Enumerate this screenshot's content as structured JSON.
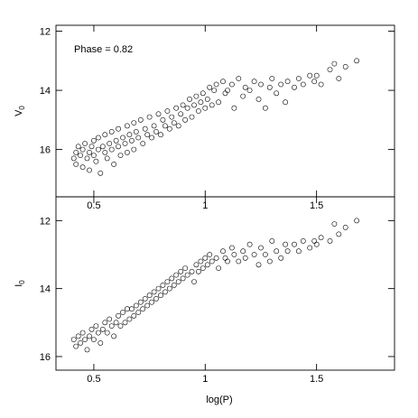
{
  "chart_data": {
    "type": "scatter",
    "shared_x": {
      "label": "log(P)",
      "lim": [
        0.33,
        1.85
      ],
      "ticks": [
        0.5,
        1,
        1.5
      ],
      "tick_labels": [
        "0.5",
        "1",
        "1.5"
      ]
    },
    "panels": [
      {
        "name": "top",
        "ylabel": "V",
        "ylabel_sub": "0",
        "annotation": "Phase = 0.82",
        "ylim": [
          11.8,
          17.6
        ],
        "y_inverted": true,
        "yticks": [
          12,
          14,
          16
        ],
        "ytick_labels": [
          "12",
          "14",
          "16"
        ],
        "series": [
          {
            "marker": "open-circle",
            "color": "#000000",
            "points": [
              [
                0.41,
                16.3
              ],
              [
                0.42,
                16.1
              ],
              [
                0.42,
                16.5
              ],
              [
                0.43,
                15.9
              ],
              [
                0.44,
                16.2
              ],
              [
                0.45,
                16.6
              ],
              [
                0.45,
                16.0
              ],
              [
                0.46,
                15.8
              ],
              [
                0.47,
                16.3
              ],
              [
                0.48,
                16.1
              ],
              [
                0.48,
                16.7
              ],
              [
                0.49,
                15.9
              ],
              [
                0.5,
                16.2
              ],
              [
                0.5,
                15.7
              ],
              [
                0.51,
                16.4
              ],
              [
                0.52,
                16.0
              ],
              [
                0.52,
                15.6
              ],
              [
                0.53,
                16.8
              ],
              [
                0.54,
                15.9
              ],
              [
                0.55,
                16.1
              ],
              [
                0.55,
                15.5
              ],
              [
                0.56,
                16.3
              ],
              [
                0.57,
                15.8
              ],
              [
                0.58,
                16.0
              ],
              [
                0.58,
                15.4
              ],
              [
                0.59,
                16.5
              ],
              [
                0.6,
                15.7
              ],
              [
                0.61,
                15.9
              ],
              [
                0.61,
                15.3
              ],
              [
                0.62,
                16.2
              ],
              [
                0.63,
                15.6
              ],
              [
                0.64,
                15.8
              ],
              [
                0.65,
                15.2
              ],
              [
                0.65,
                16.1
              ],
              [
                0.66,
                15.5
              ],
              [
                0.67,
                15.7
              ],
              [
                0.68,
                15.1
              ],
              [
                0.68,
                16.0
              ],
              [
                0.69,
                15.4
              ],
              [
                0.7,
                15.6
              ],
              [
                0.71,
                15.0
              ],
              [
                0.72,
                15.8
              ],
              [
                0.73,
                15.3
              ],
              [
                0.74,
                15.5
              ],
              [
                0.75,
                14.9
              ],
              [
                0.76,
                15.6
              ],
              [
                0.77,
                15.2
              ],
              [
                0.78,
                15.4
              ],
              [
                0.79,
                14.8
              ],
              [
                0.8,
                15.5
              ],
              [
                0.81,
                15.0
              ],
              [
                0.82,
                15.2
              ],
              [
                0.83,
                14.7
              ],
              [
                0.84,
                15.3
              ],
              [
                0.85,
                14.9
              ],
              [
                0.86,
                15.1
              ],
              [
                0.87,
                14.6
              ],
              [
                0.88,
                15.2
              ],
              [
                0.89,
                14.8
              ],
              [
                0.9,
                14.5
              ],
              [
                0.91,
                15.0
              ],
              [
                0.92,
                14.6
              ],
              [
                0.93,
                14.3
              ],
              [
                0.94,
                14.9
              ],
              [
                0.95,
                14.5
              ],
              [
                0.96,
                14.2
              ],
              [
                0.97,
                14.7
              ],
              [
                0.98,
                14.4
              ],
              [
                0.99,
                14.1
              ],
              [
                1.0,
                14.6
              ],
              [
                1.01,
                14.3
              ],
              [
                1.02,
                13.9
              ],
              [
                1.03,
                14.5
              ],
              [
                1.04,
                14.0
              ],
              [
                1.05,
                13.8
              ],
              [
                1.06,
                14.4
              ],
              [
                1.08,
                13.7
              ],
              [
                1.09,
                14.1
              ],
              [
                1.1,
                14.0
              ],
              [
                1.12,
                13.8
              ],
              [
                1.13,
                14.6
              ],
              [
                1.15,
                13.6
              ],
              [
                1.17,
                14.2
              ],
              [
                1.18,
                13.9
              ],
              [
                1.2,
                14.0
              ],
              [
                1.22,
                13.7
              ],
              [
                1.24,
                14.3
              ],
              [
                1.25,
                13.8
              ],
              [
                1.27,
                14.6
              ],
              [
                1.29,
                13.9
              ],
              [
                1.3,
                13.6
              ],
              [
                1.32,
                14.1
              ],
              [
                1.34,
                13.8
              ],
              [
                1.36,
                14.4
              ],
              [
                1.37,
                13.7
              ],
              [
                1.4,
                13.9
              ],
              [
                1.42,
                13.6
              ],
              [
                1.44,
                13.8
              ],
              [
                1.47,
                13.5
              ],
              [
                1.49,
                13.7
              ],
              [
                1.5,
                13.5
              ],
              [
                1.52,
                13.8
              ],
              [
                1.56,
                13.3
              ],
              [
                1.58,
                13.1
              ],
              [
                1.6,
                13.6
              ],
              [
                1.63,
                13.2
              ],
              [
                1.68,
                13.0
              ]
            ]
          }
        ]
      },
      {
        "name": "bottom",
        "ylabel": "I",
        "ylabel_sub": "0",
        "annotation": "",
        "ylim": [
          11.3,
          16.4
        ],
        "y_inverted": true,
        "yticks": [
          12,
          14,
          16
        ],
        "ytick_labels": [
          "12",
          "14",
          "16"
        ],
        "series": [
          {
            "marker": "open-circle",
            "color": "#000000",
            "points": [
              [
                0.41,
                15.5
              ],
              [
                0.42,
                15.7
              ],
              [
                0.43,
                15.4
              ],
              [
                0.44,
                15.6
              ],
              [
                0.45,
                15.3
              ],
              [
                0.46,
                15.5
              ],
              [
                0.47,
                15.8
              ],
              [
                0.48,
                15.4
              ],
              [
                0.49,
                15.2
              ],
              [
                0.5,
                15.5
              ],
              [
                0.51,
                15.1
              ],
              [
                0.52,
                15.3
              ],
              [
                0.53,
                15.6
              ],
              [
                0.54,
                15.2
              ],
              [
                0.55,
                15.0
              ],
              [
                0.56,
                15.3
              ],
              [
                0.57,
                14.9
              ],
              [
                0.58,
                15.1
              ],
              [
                0.59,
                15.4
              ],
              [
                0.6,
                15.0
              ],
              [
                0.61,
                14.8
              ],
              [
                0.62,
                15.1
              ],
              [
                0.63,
                14.7
              ],
              [
                0.64,
                15.0
              ],
              [
                0.65,
                14.6
              ],
              [
                0.66,
                14.9
              ],
              [
                0.67,
                14.6
              ],
              [
                0.68,
                14.8
              ],
              [
                0.69,
                14.5
              ],
              [
                0.7,
                14.7
              ],
              [
                0.71,
                14.4
              ],
              [
                0.72,
                14.6
              ],
              [
                0.73,
                14.3
              ],
              [
                0.74,
                14.5
              ],
              [
                0.75,
                14.2
              ],
              [
                0.76,
                14.4
              ],
              [
                0.77,
                14.1
              ],
              [
                0.78,
                14.3
              ],
              [
                0.79,
                14.0
              ],
              [
                0.8,
                14.2
              ],
              [
                0.81,
                13.9
              ],
              [
                0.82,
                14.1
              ],
              [
                0.83,
                13.8
              ],
              [
                0.84,
                14.0
              ],
              [
                0.85,
                13.7
              ],
              [
                0.86,
                13.9
              ],
              [
                0.87,
                13.6
              ],
              [
                0.88,
                13.8
              ],
              [
                0.89,
                13.5
              ],
              [
                0.9,
                13.7
              ],
              [
                0.91,
                13.4
              ],
              [
                0.92,
                13.6
              ],
              [
                0.94,
                13.5
              ],
              [
                0.95,
                13.8
              ],
              [
                0.96,
                13.3
              ],
              [
                0.97,
                13.5
              ],
              [
                0.98,
                13.2
              ],
              [
                0.99,
                13.4
              ],
              [
                1.0,
                13.1
              ],
              [
                1.01,
                13.3
              ],
              [
                1.02,
                13.0
              ],
              [
                1.03,
                13.2
              ],
              [
                1.05,
                13.1
              ],
              [
                1.06,
                13.4
              ],
              [
                1.08,
                12.9
              ],
              [
                1.09,
                13.1
              ],
              [
                1.1,
                13.2
              ],
              [
                1.12,
                12.8
              ],
              [
                1.13,
                13.0
              ],
              [
                1.15,
                13.2
              ],
              [
                1.17,
                12.9
              ],
              [
                1.18,
                13.1
              ],
              [
                1.2,
                12.7
              ],
              [
                1.22,
                13.0
              ],
              [
                1.24,
                13.3
              ],
              [
                1.25,
                12.8
              ],
              [
                1.27,
                13.0
              ],
              [
                1.29,
                13.2
              ],
              [
                1.3,
                12.6
              ],
              [
                1.32,
                12.9
              ],
              [
                1.34,
                13.1
              ],
              [
                1.36,
                12.7
              ],
              [
                1.37,
                12.9
              ],
              [
                1.4,
                12.7
              ],
              [
                1.42,
                12.9
              ],
              [
                1.44,
                12.6
              ],
              [
                1.47,
                12.8
              ],
              [
                1.49,
                12.6
              ],
              [
                1.5,
                12.7
              ],
              [
                1.52,
                12.5
              ],
              [
                1.56,
                12.6
              ],
              [
                1.58,
                12.1
              ],
              [
                1.6,
                12.4
              ],
              [
                1.63,
                12.2
              ],
              [
                1.68,
                12.0
              ]
            ]
          }
        ]
      }
    ]
  }
}
